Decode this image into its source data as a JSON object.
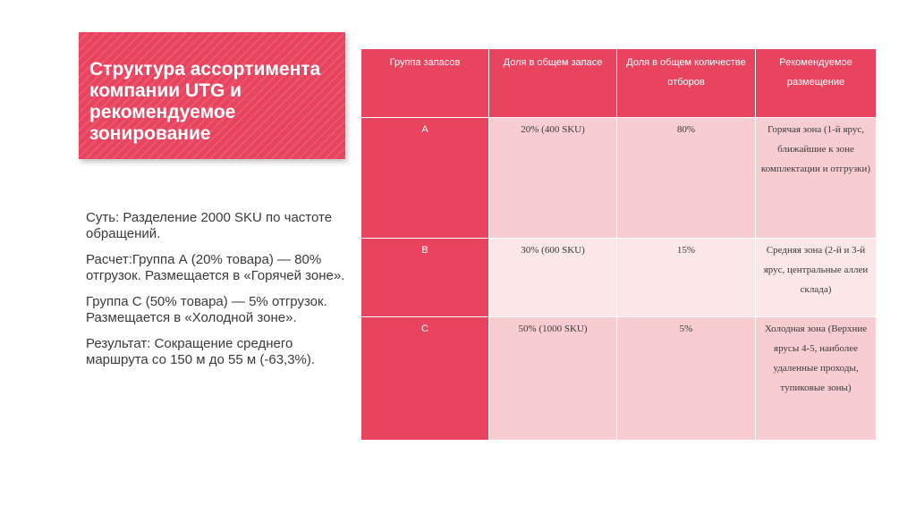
{
  "title": "Структура ассортимента компании UTG и рекомендуемое зонирование",
  "body": [
    "Суть: Разделение 2000 SKU по частоте обращений.",
    "Расчет:Группа А (20% товара) — 80% отгрузок. Размещается в «Горячей зоне».",
    "Группа С (50% товара) — 5% отгрузок. Размещается в «Холодной зоне».",
    "Результат: Сокращение среднего маршрута со 150 м до 55 м (-63,3%)."
  ],
  "table": {
    "headers": [
      "Группа запасов",
      "Доля в общем запасе",
      "Доля в общем количестве отборов",
      "Рекомендуемое размещение"
    ],
    "rows": [
      [
        "A",
        "20% (400 SKU)",
        "80%",
        "Горячая зона (1-й ярус, ближайшие к зоне комплектации и отгрузки)"
      ],
      [
        "B",
        "30% (600 SKU)",
        "15%",
        "Средняя зона (2-й и 3-й ярус, центральные аллеи склада)"
      ],
      [
        "C",
        "50% (1000 SKU)",
        "5%",
        "Холодная зона (Верхние ярусы 4-5, наиболее удаленные проходы, тупиковые зоны)"
      ]
    ]
  },
  "colors": {
    "accent": "#e8435f",
    "row_light": "#f7cdd2",
    "row_lighter": "#fbe6e8"
  }
}
